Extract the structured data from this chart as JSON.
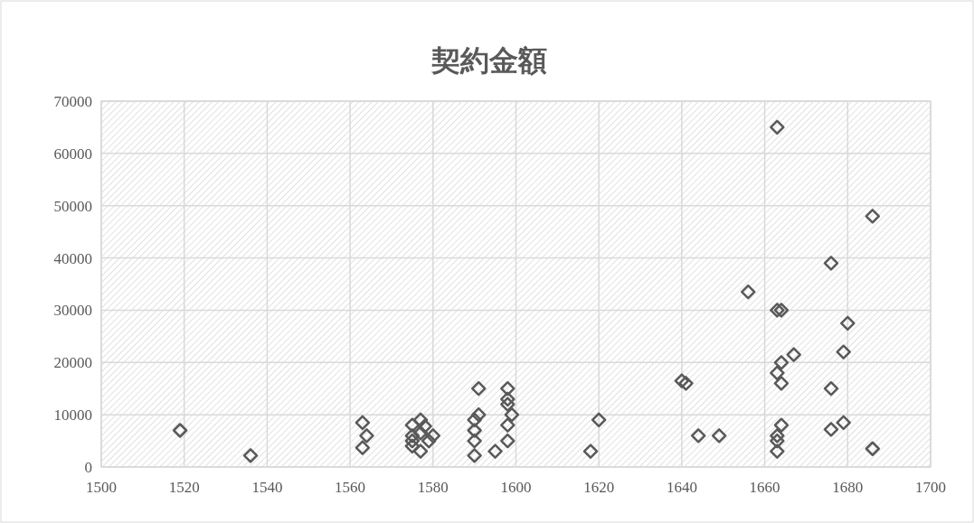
{
  "chart_data": {
    "type": "scatter",
    "title": "契約金額",
    "x": [
      1519,
      1536,
      1563,
      1564,
      1563,
      1575,
      1575,
      1575,
      1575,
      1577,
      1577,
      1577,
      1578,
      1579,
      1580,
      1590,
      1590,
      1590,
      1590,
      1591,
      1591,
      1595,
      1598,
      1598,
      1598,
      1598,
      1598,
      1599,
      1618,
      1620,
      1640,
      1641,
      1644,
      1649,
      1656,
      1663,
      1663,
      1664,
      1664,
      1663,
      1664,
      1664,
      1663,
      1663,
      1663,
      1667,
      1676,
      1676,
      1676,
      1679,
      1679,
      1680,
      1686,
      1686
    ],
    "values": [
      7000,
      2200,
      8500,
      6000,
      3700,
      8000,
      6000,
      5000,
      4000,
      9000,
      6500,
      3000,
      7800,
      5000,
      6000,
      9000,
      7000,
      5000,
      2200,
      10000,
      15000,
      3000,
      15000,
      13000,
      12000,
      8000,
      5000,
      10000,
      3000,
      9000,
      16500,
      16000,
      6000,
      6000,
      33500,
      65000,
      30000,
      30000,
      20000,
      18000,
      16000,
      8000,
      6000,
      5000,
      3000,
      21500,
      39000,
      15000,
      7200,
      22000,
      8500,
      27500,
      48000,
      3500
    ],
    "color": "#595959",
    "marker": "diamond",
    "xlim": [
      1500,
      1700
    ],
    "xticks": [
      1500,
      1520,
      1540,
      1560,
      1580,
      1600,
      1620,
      1640,
      1660,
      1680,
      1700
    ],
    "ylim": [
      0,
      70000
    ],
    "yticks": [
      0,
      10000,
      20000,
      30000,
      40000,
      50000,
      60000,
      70000
    ],
    "grid": true
  }
}
